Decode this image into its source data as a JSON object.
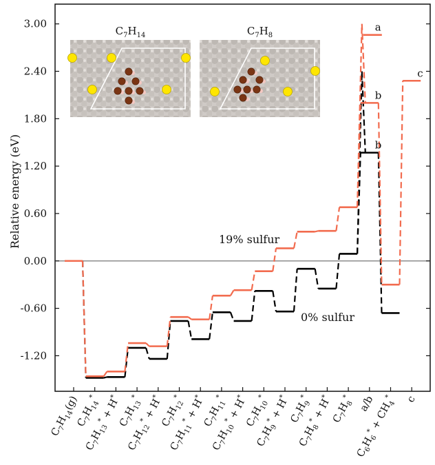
{
  "chart_data": {
    "type": "line",
    "ylabel": "Relative energy (eV)",
    "ylim": [
      -1.65,
      3.25
    ],
    "yticks": [
      "3.00",
      "2.40",
      "1.80",
      "1.20",
      "0.60",
      "0.00",
      "-0.60",
      "-1.20"
    ],
    "ytick_values": [
      3.0,
      2.4,
      1.8,
      1.2,
      0.6,
      0.0,
      -0.6,
      -1.2
    ],
    "categories": [
      "C7H14(g)",
      "C7H14*",
      "C7H13* + H*",
      "C7H13*",
      "C7H12* + H*",
      "C7H12*",
      "C7H11* + H*",
      "C7H11*",
      "C7H10* + H*",
      "C7H10*",
      "C7H9* + H*",
      "C7H9*",
      "C7H8* + H*",
      "C7H8*",
      "a/b",
      "C6H6* + CH4*",
      "c"
    ],
    "category_labels": [
      {
        "base": "C",
        "s1": "7",
        "mid": "H",
        "s2": "14",
        "tail": "(g)",
        "star": ""
      },
      {
        "base": "C",
        "s1": "7",
        "mid": "H",
        "s2": "14",
        "tail": "",
        "star": "*"
      },
      {
        "base": "C",
        "s1": "7",
        "mid": "H",
        "s2": "13",
        "tail": " + H",
        "star": "*",
        "star2": "*"
      },
      {
        "base": "C",
        "s1": "7",
        "mid": "H",
        "s2": "13",
        "tail": "",
        "star": "*"
      },
      {
        "base": "C",
        "s1": "7",
        "mid": "H",
        "s2": "12",
        "tail": " + H",
        "star": "*",
        "star2": "*"
      },
      {
        "base": "C",
        "s1": "7",
        "mid": "H",
        "s2": "12",
        "tail": "",
        "star": "*"
      },
      {
        "base": "C",
        "s1": "7",
        "mid": "H",
        "s2": "11",
        "tail": " + H",
        "star": "*",
        "star2": "*"
      },
      {
        "base": "C",
        "s1": "7",
        "mid": "H",
        "s2": "11",
        "tail": "",
        "star": "*"
      },
      {
        "base": "C",
        "s1": "7",
        "mid": "H",
        "s2": "10",
        "tail": " + H",
        "star": "*",
        "star2": "*"
      },
      {
        "base": "C",
        "s1": "7",
        "mid": "H",
        "s2": "10",
        "tail": "",
        "star": "*"
      },
      {
        "base": "C",
        "s1": "7",
        "mid": "H",
        "s2": "9",
        "tail": " + H",
        "star": "*",
        "star2": "*"
      },
      {
        "base": "C",
        "s1": "7",
        "mid": "H",
        "s2": "9",
        "tail": "",
        "star": "*"
      },
      {
        "base": "C",
        "s1": "7",
        "mid": "H",
        "s2": "8",
        "tail": " + H",
        "star": "*",
        "star2": "*"
      },
      {
        "base": "C",
        "s1": "7",
        "mid": "H",
        "s2": "8",
        "tail": "",
        "star": "*"
      },
      {
        "plain": "a/b"
      },
      {
        "base": "C",
        "s1": "6",
        "mid": "H",
        "s2": "6",
        "tail": " + CH",
        "s3": "4",
        "star": "*",
        "star2": "*"
      },
      {
        "plain": "c"
      }
    ],
    "series": [
      {
        "name": "0% sulfur",
        "color": "#000000",
        "levels": [
          {
            "x": 0,
            "y": 0.0
          },
          {
            "x": 1,
            "y": -1.48
          },
          {
            "x": 2,
            "y": -1.47
          },
          {
            "x": 3,
            "y": -1.1
          },
          {
            "x": 4,
            "y": -1.24
          },
          {
            "x": 5,
            "y": -0.76
          },
          {
            "x": 6,
            "y": -0.99
          },
          {
            "x": 7,
            "y": -0.65
          },
          {
            "x": 8,
            "y": -0.76
          },
          {
            "x": 9,
            "y": -0.38
          },
          {
            "x": 10,
            "y": -0.64
          },
          {
            "x": 11,
            "y": -0.1
          },
          {
            "x": 12,
            "y": -0.35
          },
          {
            "x": 13,
            "y": 0.09
          },
          {
            "x": 14,
            "y": 1.37,
            "ts": 2.4
          },
          {
            "x": 15,
            "y": -0.66
          }
        ]
      },
      {
        "name": "19% sulfur",
        "color": "#f26b4e",
        "levels": [
          {
            "x": 0,
            "y": 0.0
          },
          {
            "x": 1,
            "y": -1.46
          },
          {
            "x": 2,
            "y": -1.4
          },
          {
            "x": 3,
            "y": -1.04
          },
          {
            "x": 4,
            "y": -1.08
          },
          {
            "x": 5,
            "y": -0.71
          },
          {
            "x": 6,
            "y": -0.74
          },
          {
            "x": 7,
            "y": -0.44
          },
          {
            "x": 8,
            "y": -0.37
          },
          {
            "x": 9,
            "y": -0.13
          },
          {
            "x": 10,
            "y": 0.16
          },
          {
            "x": 11,
            "y": 0.37
          },
          {
            "x": 12,
            "y": 0.38
          },
          {
            "x": 13,
            "y": 0.68
          },
          {
            "x": 14,
            "y": 2.0,
            "ts": 3.0
          },
          {
            "x": 15,
            "y": -0.3
          },
          {
            "x": 16,
            "y": 2.28
          }
        ]
      }
    ],
    "point_labels": [
      {
        "text": "a",
        "x": 14,
        "y": 2.86,
        "series": "19% sulfur"
      },
      {
        "text": "b",
        "x": 14,
        "y": 2.0,
        "series": "19% sulfur"
      },
      {
        "text": "b",
        "x": 14,
        "y": 1.37,
        "series": "0% sulfur"
      },
      {
        "text": "c",
        "x": 16,
        "y": 2.28,
        "series": "19% sulfur"
      }
    ],
    "insets": [
      {
        "title_base": "C",
        "title_s1": "7",
        "title_mid": "H",
        "title_s2": "14"
      },
      {
        "title_base": "C",
        "title_s1": "7",
        "title_mid": "H",
        "title_s2": "8"
      }
    ],
    "zero_line": true,
    "grid": false
  }
}
